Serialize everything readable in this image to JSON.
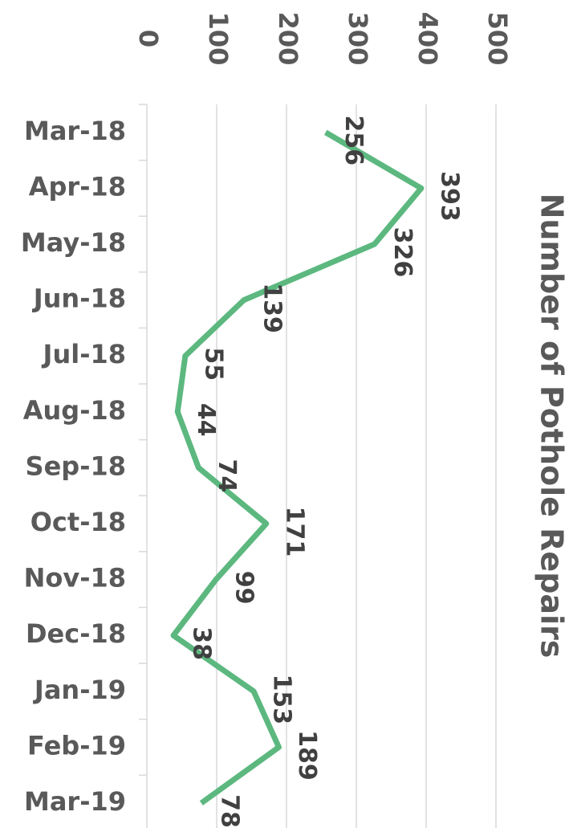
{
  "chart_data": {
    "type": "line",
    "title": "Number of Pothole Repairs",
    "categories": [
      "Mar-18",
      "Apr-18",
      "May-18",
      "Jun-18",
      "Jul-18",
      "Aug-18",
      "Sep-18",
      "Oct-18",
      "Nov-18",
      "Dec-18",
      "Jan-19",
      "Feb-19",
      "Mar-19"
    ],
    "values": [
      256,
      393,
      326,
      139,
      55,
      44,
      74,
      171,
      99,
      38,
      153,
      189,
      78
    ],
    "color": "#5cb87f",
    "ylim": [
      0,
      500
    ],
    "yticks": [
      0,
      100,
      200,
      300,
      400,
      500
    ],
    "grid": true
  }
}
